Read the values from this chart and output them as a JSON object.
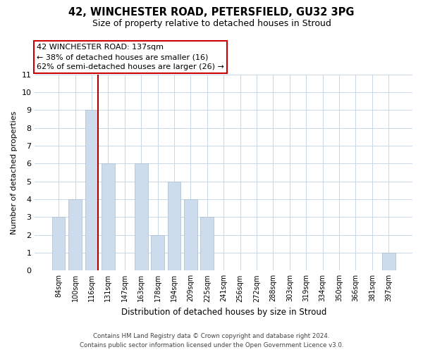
{
  "title_line1": "42, WINCHESTER ROAD, PETERSFIELD, GU32 3PG",
  "title_line2": "Size of property relative to detached houses in Stroud",
  "xlabel": "Distribution of detached houses by size in Stroud",
  "ylabel": "Number of detached properties",
  "bar_labels": [
    "84sqm",
    "100sqm",
    "116sqm",
    "131sqm",
    "147sqm",
    "163sqm",
    "178sqm",
    "194sqm",
    "209sqm",
    "225sqm",
    "241sqm",
    "256sqm",
    "272sqm",
    "288sqm",
    "303sqm",
    "319sqm",
    "334sqm",
    "350sqm",
    "366sqm",
    "381sqm",
    "397sqm"
  ],
  "bar_values": [
    3,
    4,
    9,
    6,
    0,
    6,
    2,
    5,
    4,
    3,
    0,
    0,
    0,
    0,
    0,
    0,
    0,
    0,
    0,
    0,
    1
  ],
  "bar_color": "#ccdcec",
  "bar_edge_color": "#aabccf",
  "red_line_after_index": 2,
  "ylim": [
    0,
    11
  ],
  "yticks": [
    0,
    1,
    2,
    3,
    4,
    5,
    6,
    7,
    8,
    9,
    10,
    11
  ],
  "annotation_title": "42 WINCHESTER ROAD: 137sqm",
  "annotation_line1": "← 38% of detached houses are smaller (16)",
  "annotation_line2": "62% of semi-detached houses are larger (26) →",
  "footer_line1": "Contains HM Land Registry data © Crown copyright and database right 2024.",
  "footer_line2": "Contains public sector information licensed under the Open Government Licence v3.0.",
  "grid_color": "#c8d8e8",
  "background_color": "#ffffff",
  "ann_box_facecolor": "#ffffff",
  "ann_box_edgecolor": "#cc0000"
}
